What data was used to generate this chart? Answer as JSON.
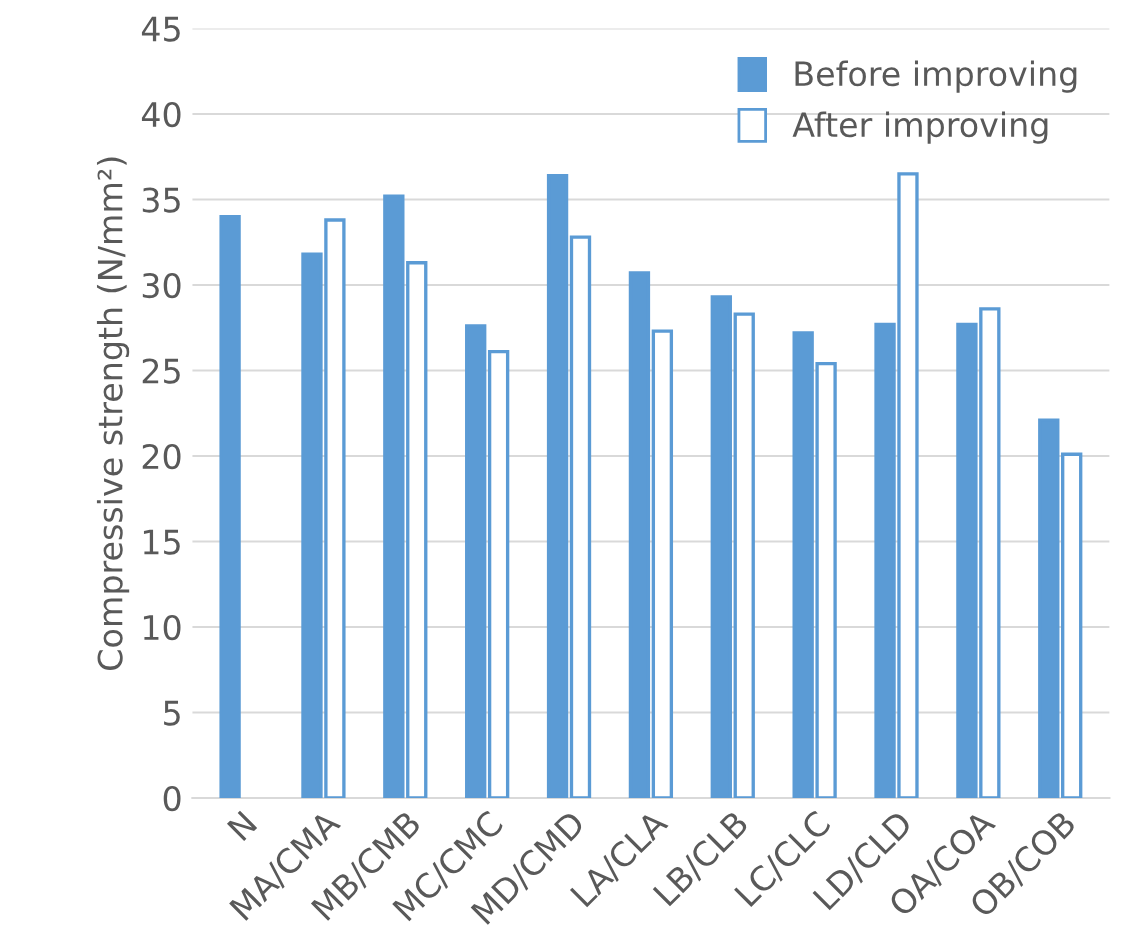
{
  "chart_data": {
    "type": "bar",
    "ylabel": "Compressive strength (N/mm²)",
    "categories": [
      "N",
      "MA/CMA",
      "MB/CMB",
      "MC/CMC",
      "MD/CMD",
      "LA/CLA",
      "LB/CLB",
      "LC/CLC",
      "LD/CLD",
      "OA/COA",
      "OB/COB"
    ],
    "series": [
      {
        "name": "Before improving",
        "color": "#5b9bd5",
        "values": [
          34.0,
          31.8,
          35.2,
          27.6,
          36.4,
          30.7,
          29.3,
          27.2,
          27.7,
          27.7,
          22.1
        ]
      },
      {
        "name": "After improving",
        "color": "#ffffff",
        "values": [
          null,
          33.8,
          31.3,
          26.1,
          32.8,
          27.3,
          28.3,
          25.4,
          36.5,
          28.6,
          20.1
        ]
      }
    ],
    "ylim": [
      0,
      45
    ],
    "yticks": [
      0,
      5,
      10,
      15,
      20,
      25,
      30,
      35,
      40,
      45
    ],
    "grid": "y",
    "legend": "top right"
  }
}
